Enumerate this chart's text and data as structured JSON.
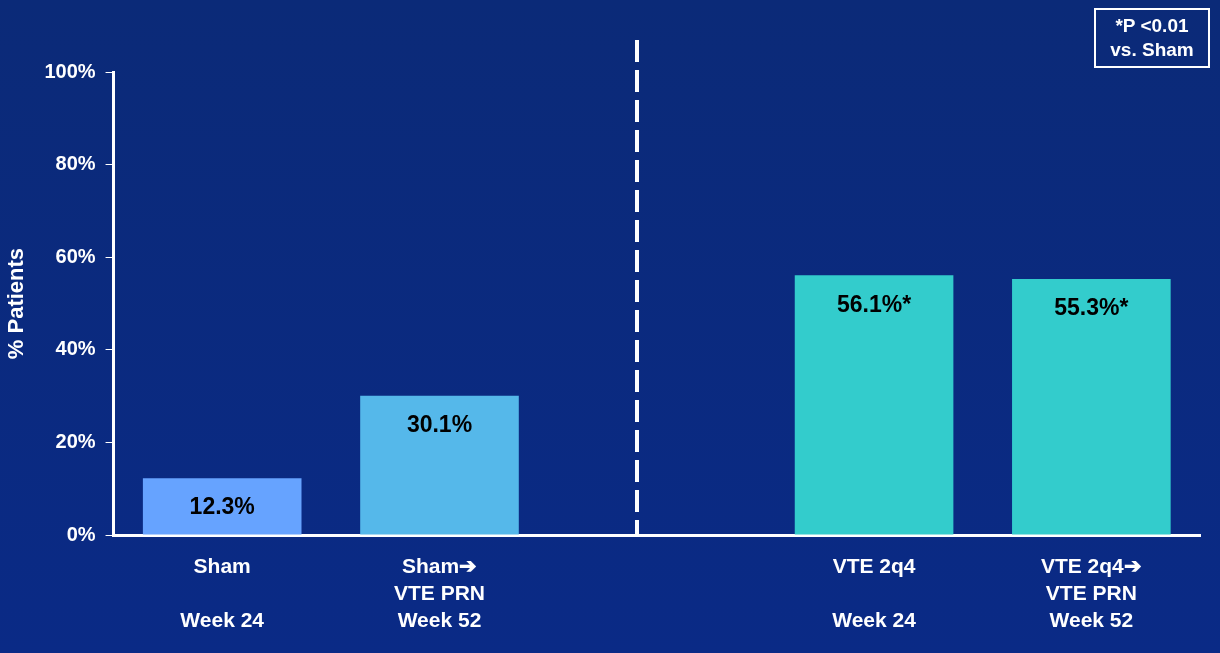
{
  "chart_data": {
    "type": "bar",
    "ylabel": "% Patients",
    "categories": [
      "Sham\n\nWeek 24",
      "Sham➔\nVTE PRN\nWeek 52",
      null,
      "VTE 2q4\n\nWeek 24",
      "VTE 2q4➔\nVTE PRN\nWeek 52"
    ],
    "values": [
      12.3,
      30.1,
      null,
      56.1,
      55.3
    ],
    "colors": [
      "#66a3ff",
      "#55b8ea",
      "#33cccc",
      "#33cccc",
      "#33cccc"
    ],
    "value_labels": [
      "12.3%",
      "30.1%",
      null,
      "56.1%*",
      "55.3%*"
    ],
    "ylim": [
      0,
      100
    ],
    "yticks": [
      {
        "value": 0,
        "label": "0%"
      },
      {
        "value": 20,
        "label": "20%"
      },
      {
        "value": 40,
        "label": "40%"
      },
      {
        "value": 60,
        "label": "60%"
      },
      {
        "value": 80,
        "label": "80%"
      },
      {
        "value": 100,
        "label": "100%"
      }
    ],
    "annotations": [
      "*P <0.01 vs. Sham"
    ],
    "grid": false,
    "legend": false
  }
}
